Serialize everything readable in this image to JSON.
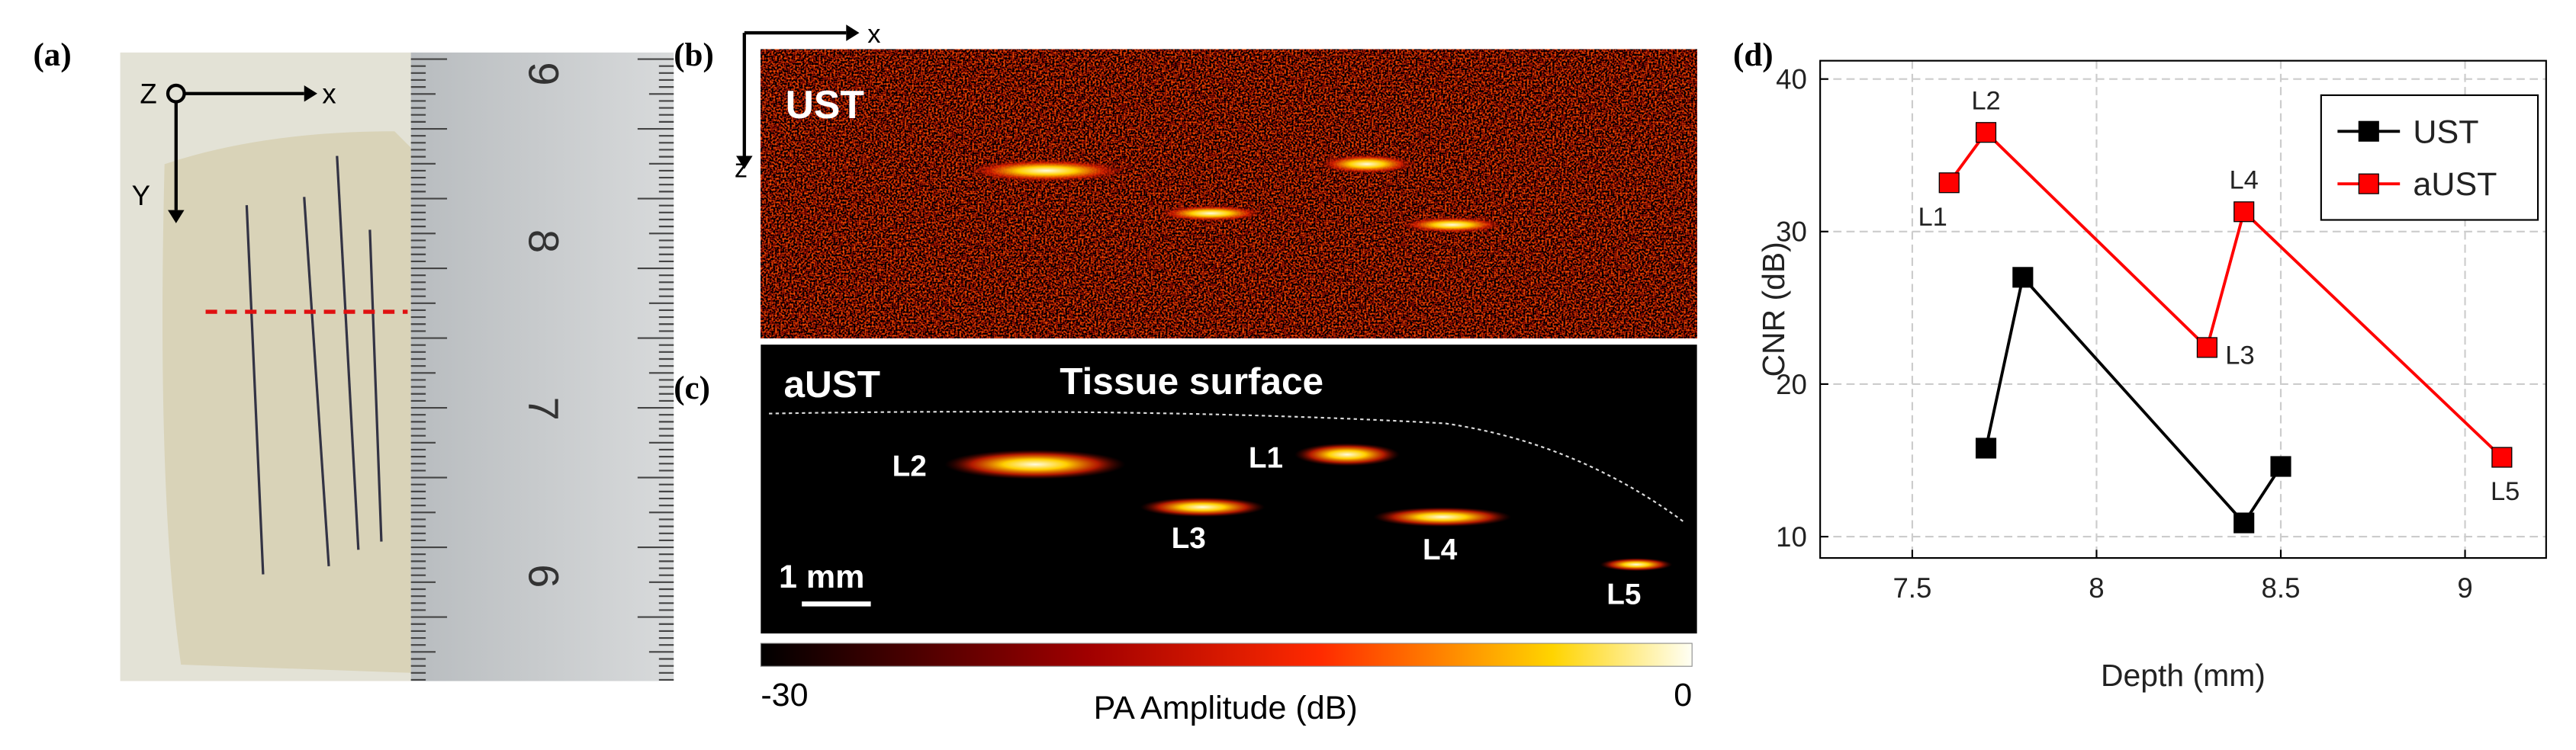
{
  "panels": {
    "a": {
      "label": "(a)",
      "axes": [
        "Z",
        "x",
        "Y"
      ],
      "ruler_labels": [
        "9",
        "8",
        "7",
        "6"
      ]
    },
    "b": {
      "label": "(b)",
      "title": "UST",
      "axes": [
        "x",
        "z"
      ]
    },
    "c": {
      "label": "(c)",
      "title": "aUST",
      "annotation": "Tissue surface",
      "lesions": [
        "L1",
        "L2",
        "L3",
        "L4",
        "L5"
      ],
      "scale_bar": "1 mm",
      "colorbar": {
        "label": "PA Amplitude (dB)",
        "ticks": [
          -30,
          0
        ]
      }
    }
  },
  "chart_data": {
    "type": "line",
    "panel_label": "(d)",
    "x_label": "Depth (mm)",
    "y_label": "CNR (dB)",
    "xlim": [
      7.25,
      9.22
    ],
    "ylim": [
      8.6,
      41.2
    ],
    "xticks": [
      7.5,
      8,
      8.5,
      9
    ],
    "yticks": [
      10,
      20,
      30,
      40
    ],
    "grid": true,
    "legend": "northeast",
    "series": [
      {
        "name": "UST",
        "color": "#000000",
        "x": [
          7.7,
          7.8,
          8.4,
          8.5
        ],
        "values": [
          15.8,
          27,
          10.9,
          14.6
        ]
      },
      {
        "name": "aUST",
        "color": "#ff0000",
        "x": [
          7.6,
          7.7,
          8.3,
          8.4,
          9.1
        ],
        "values": [
          33.2,
          36.5,
          22.4,
          31.3,
          15.2
        ],
        "point_labels": [
          "L1",
          "L2",
          "L3",
          "L4",
          "L5"
        ]
      }
    ]
  }
}
